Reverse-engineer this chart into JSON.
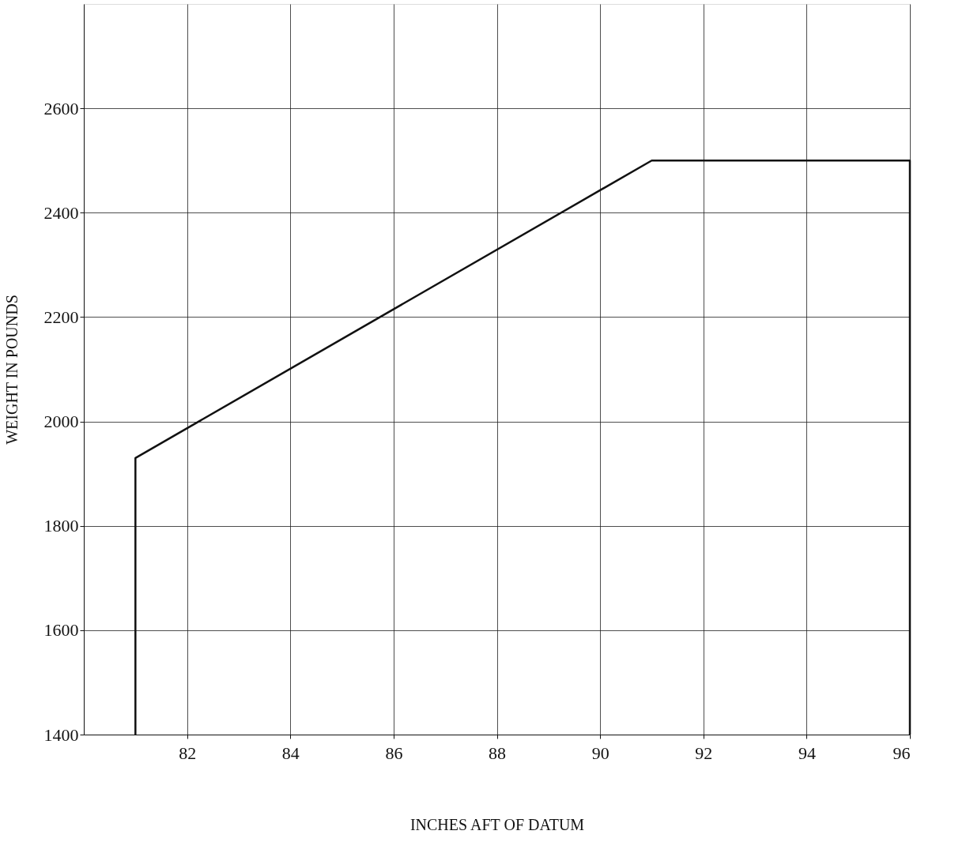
{
  "chart_data": {
    "type": "line",
    "xlabel": "INCHES AFT OF DATUM",
    "ylabel": "WEIGHT IN POUNDS",
    "series": [
      {
        "color": "#111111",
        "x": [
          81,
          81,
          91,
          96,
          96
        ],
        "values": [
          1400,
          1930,
          2500,
          2500,
          1400
        ]
      }
    ],
    "xlim": [
      80,
      96
    ],
    "xticks": [
      82,
      84,
      86,
      88,
      90,
      92,
      94,
      96
    ],
    "ylim": [
      1400,
      2800
    ],
    "yticks": [
      1400,
      1600,
      1800,
      2000,
      2200,
      2400,
      2600
    ],
    "grid": true,
    "marker": "none",
    "line_style": "solid"
  }
}
